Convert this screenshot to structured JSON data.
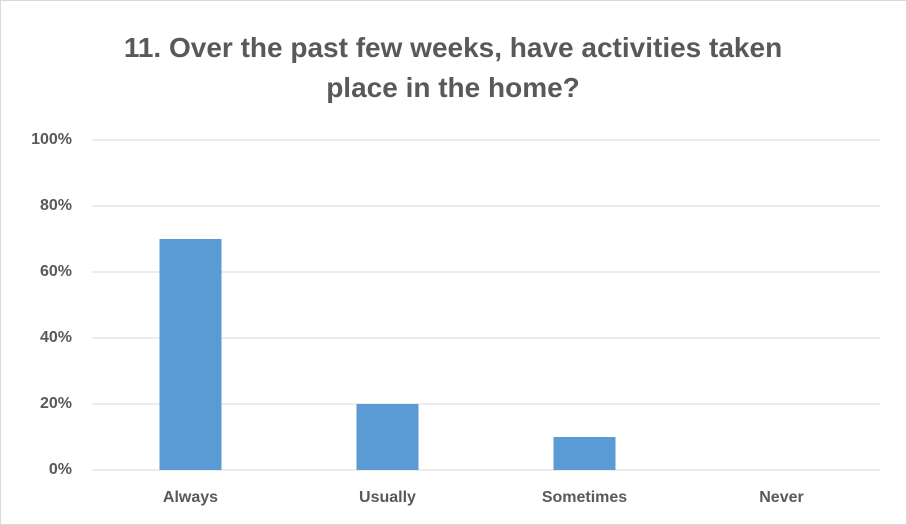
{
  "chart_data": {
    "type": "bar",
    "title": "11. Over the past few weeks, have activities taken place in the home?",
    "categories": [
      "Always",
      "Usually",
      "Sometimes",
      "Never"
    ],
    "values": [
      70,
      20,
      10,
      0
    ],
    "color": "#5b9bd5",
    "ylim": [
      0,
      100
    ],
    "yticks": [
      {
        "value": 0,
        "label": "0%"
      },
      {
        "value": 20,
        "label": "20%"
      },
      {
        "value": 40,
        "label": "40%"
      },
      {
        "value": 60,
        "label": "60%"
      },
      {
        "value": 80,
        "label": "80%"
      },
      {
        "value": 100,
        "label": "100%"
      }
    ],
    "grid": true
  }
}
